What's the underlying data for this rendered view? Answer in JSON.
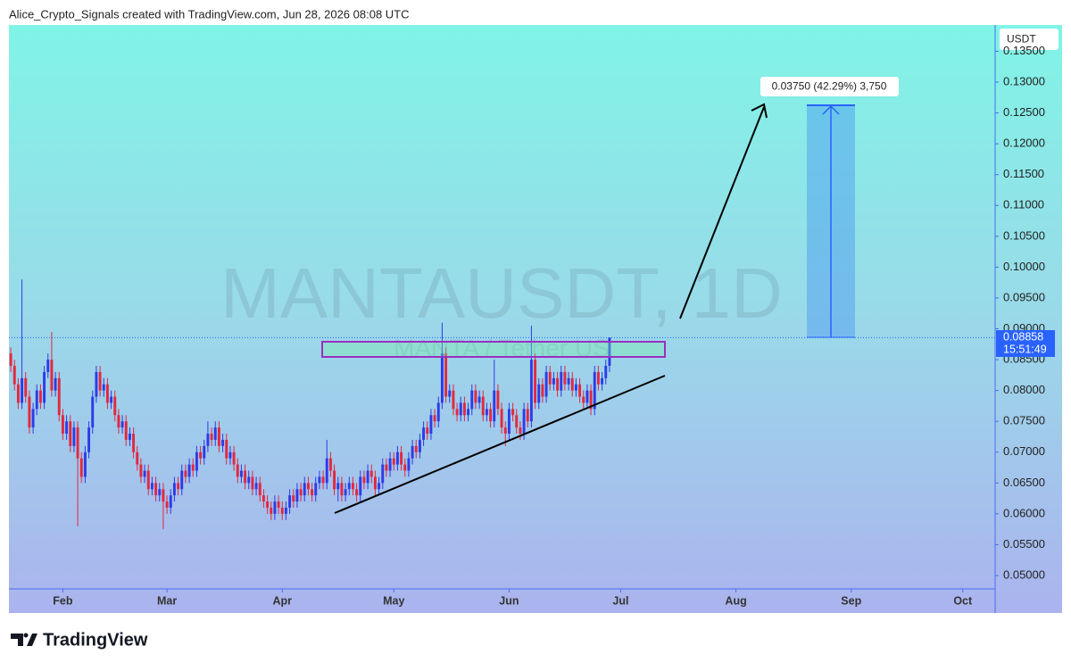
{
  "header": {
    "attribution": "Alice_Crypto_Signals created with TradingView.com, Jun 28, 2026 08:08 UTC"
  },
  "chart_data": {
    "type": "candlestick",
    "title": "MANTAUSDT, 1D",
    "subtitle": "MANTA / Tether US",
    "y_axis_label": "USDT",
    "x": [
      18,
      19,
      20,
      21,
      22,
      23,
      24,
      25,
      26,
      27,
      28,
      29,
      30,
      31,
      32,
      33,
      34,
      35,
      36,
      37,
      38,
      39,
      40,
      41,
      42,
      43,
      44,
      45,
      46,
      47,
      48,
      49,
      50,
      51,
      52,
      53,
      54,
      55,
      56,
      57,
      58,
      59,
      60,
      61,
      62,
      63,
      64,
      65,
      66,
      67,
      68,
      69,
      70,
      71,
      72,
      73,
      74,
      75,
      76,
      77,
      78,
      79,
      80,
      81,
      82,
      83,
      84,
      85,
      86,
      87,
      88,
      89,
      90,
      91,
      92,
      93,
      94,
      95,
      96,
      97,
      98,
      99,
      100,
      101,
      102,
      103,
      104,
      105,
      106,
      107,
      108,
      109,
      110,
      111,
      112,
      113,
      114,
      115,
      116,
      117,
      118,
      119,
      120,
      121,
      122,
      123,
      124,
      125,
      126,
      127,
      128,
      129,
      130,
      131,
      132,
      133,
      134,
      135,
      136,
      137,
      138,
      139,
      140,
      141,
      142,
      143,
      144,
      145,
      146,
      147,
      148,
      149,
      150,
      151,
      152,
      153,
      154,
      155,
      156,
      157,
      158,
      159,
      160,
      161,
      162,
      163,
      164,
      165,
      166,
      167,
      168,
      169,
      170,
      171,
      172,
      173,
      174,
      175,
      176,
      177,
      178,
      179
    ],
    "open": [
      0.086,
      0.084,
      0.081,
      0.078,
      0.082,
      0.079,
      0.074,
      0.077,
      0.08,
      0.078,
      0.083,
      0.085,
      0.08,
      0.082,
      0.076,
      0.073,
      0.075,
      0.071,
      0.074,
      0.069,
      0.066,
      0.07,
      0.074,
      0.079,
      0.083,
      0.08,
      0.081,
      0.078,
      0.079,
      0.076,
      0.074,
      0.075,
      0.072,
      0.073,
      0.07,
      0.068,
      0.066,
      0.067,
      0.064,
      0.065,
      0.063,
      0.064,
      0.062,
      0.061,
      0.063,
      0.065,
      0.064,
      0.067,
      0.066,
      0.068,
      0.067,
      0.07,
      0.069,
      0.071,
      0.073,
      0.072,
      0.074,
      0.071,
      0.072,
      0.069,
      0.07,
      0.068,
      0.066,
      0.067,
      0.065,
      0.066,
      0.064,
      0.065,
      0.063,
      0.062,
      0.061,
      0.06,
      0.062,
      0.061,
      0.06,
      0.061,
      0.063,
      0.062,
      0.064,
      0.063,
      0.065,
      0.064,
      0.063,
      0.065,
      0.066,
      0.065,
      0.069,
      0.067,
      0.064,
      0.065,
      0.063,
      0.064,
      0.065,
      0.064,
      0.063,
      0.066,
      0.065,
      0.067,
      0.066,
      0.064,
      0.065,
      0.068,
      0.067,
      0.069,
      0.068,
      0.07,
      0.068,
      0.067,
      0.069,
      0.071,
      0.07,
      0.072,
      0.074,
      0.073,
      0.076,
      0.075,
      0.078,
      0.086,
      0.079,
      0.08,
      0.077,
      0.076,
      0.078,
      0.076,
      0.077,
      0.08,
      0.078,
      0.079,
      0.076,
      0.077,
      0.075,
      0.08,
      0.077,
      0.074,
      0.073,
      0.077,
      0.076,
      0.074,
      0.073,
      0.077,
      0.075,
      0.085,
      0.078,
      0.081,
      0.079,
      0.083,
      0.081,
      0.082,
      0.08,
      0.083,
      0.081,
      0.082,
      0.08,
      0.081,
      0.079,
      0.078,
      0.08,
      0.077,
      0.083,
      0.081,
      0.082,
      0.084
    ],
    "high": [
      0.087,
      0.085,
      0.082,
      0.098,
      0.083,
      0.08,
      0.078,
      0.081,
      0.081,
      0.084,
      0.086,
      0.0895,
      0.083,
      0.083,
      0.077,
      0.076,
      0.076,
      0.075,
      0.075,
      0.07,
      0.071,
      0.075,
      0.08,
      0.084,
      0.084,
      0.082,
      0.082,
      0.08,
      0.08,
      0.077,
      0.076,
      0.076,
      0.074,
      0.074,
      0.071,
      0.069,
      0.068,
      0.068,
      0.066,
      0.066,
      0.065,
      0.065,
      0.063,
      0.064,
      0.066,
      0.066,
      0.068,
      0.068,
      0.069,
      0.069,
      0.071,
      0.071,
      0.072,
      0.075,
      0.074,
      0.075,
      0.075,
      0.073,
      0.073,
      0.071,
      0.071,
      0.069,
      0.068,
      0.068,
      0.067,
      0.067,
      0.066,
      0.066,
      0.064,
      0.063,
      0.062,
      0.063,
      0.063,
      0.062,
      0.062,
      0.064,
      0.064,
      0.065,
      0.065,
      0.066,
      0.066,
      0.065,
      0.066,
      0.067,
      0.067,
      0.072,
      0.07,
      0.068,
      0.066,
      0.066,
      0.065,
      0.066,
      0.066,
      0.065,
      0.067,
      0.067,
      0.068,
      0.068,
      0.067,
      0.066,
      0.069,
      0.069,
      0.07,
      0.07,
      0.071,
      0.071,
      0.069,
      0.07,
      0.072,
      0.072,
      0.073,
      0.075,
      0.075,
      0.077,
      0.077,
      0.079,
      0.091,
      0.087,
      0.081,
      0.081,
      0.078,
      0.079,
      0.079,
      0.078,
      0.081,
      0.081,
      0.08,
      0.08,
      0.078,
      0.078,
      0.085,
      0.081,
      0.078,
      0.075,
      0.078,
      0.078,
      0.077,
      0.075,
      0.078,
      0.078,
      0.0905,
      0.086,
      0.082,
      0.082,
      0.084,
      0.084,
      0.083,
      0.083,
      0.084,
      0.084,
      0.083,
      0.083,
      0.082,
      0.082,
      0.08,
      0.081,
      0.081,
      0.084,
      0.084,
      0.083,
      0.085,
      0.0886
    ],
    "low": [
      0.083,
      0.08,
      0.077,
      0.077,
      0.078,
      0.073,
      0.073,
      0.076,
      0.077,
      0.077,
      0.082,
      0.079,
      0.079,
      0.075,
      0.072,
      0.072,
      0.07,
      0.07,
      0.058,
      0.065,
      0.065,
      0.069,
      0.073,
      0.078,
      0.079,
      0.079,
      0.077,
      0.077,
      0.075,
      0.073,
      0.073,
      0.071,
      0.071,
      0.069,
      0.067,
      0.065,
      0.065,
      0.063,
      0.063,
      0.062,
      0.062,
      0.0575,
      0.06,
      0.06,
      0.062,
      0.063,
      0.063,
      0.065,
      0.065,
      0.066,
      0.066,
      0.068,
      0.068,
      0.07,
      0.071,
      0.071,
      0.07,
      0.07,
      0.068,
      0.068,
      0.067,
      0.065,
      0.065,
      0.064,
      0.064,
      0.063,
      0.063,
      0.062,
      0.061,
      0.06,
      0.059,
      0.059,
      0.06,
      0.059,
      0.059,
      0.06,
      0.061,
      0.061,
      0.062,
      0.062,
      0.063,
      0.062,
      0.062,
      0.064,
      0.064,
      0.064,
      0.066,
      0.063,
      0.062,
      0.062,
      0.062,
      0.063,
      0.063,
      0.062,
      0.062,
      0.064,
      0.064,
      0.065,
      0.063,
      0.063,
      0.064,
      0.066,
      0.066,
      0.067,
      0.067,
      0.067,
      0.066,
      0.066,
      0.068,
      0.069,
      0.069,
      0.071,
      0.072,
      0.072,
      0.074,
      0.074,
      0.077,
      0.078,
      0.078,
      0.076,
      0.075,
      0.075,
      0.075,
      0.075,
      0.076,
      0.077,
      0.077,
      0.075,
      0.075,
      0.074,
      0.074,
      0.076,
      0.073,
      0.071,
      0.072,
      0.075,
      0.073,
      0.072,
      0.072,
      0.074,
      0.074,
      0.077,
      0.077,
      0.078,
      0.078,
      0.08,
      0.08,
      0.079,
      0.079,
      0.08,
      0.08,
      0.079,
      0.079,
      0.078,
      0.077,
      0.077,
      0.076,
      0.076,
      0.08,
      0.08,
      0.081,
      0.083
    ],
    "close": [
      0.084,
      0.081,
      0.078,
      0.082,
      0.079,
      0.074,
      0.077,
      0.08,
      0.078,
      0.083,
      0.085,
      0.08,
      0.082,
      0.076,
      0.073,
      0.075,
      0.071,
      0.074,
      0.069,
      0.066,
      0.07,
      0.074,
      0.079,
      0.083,
      0.08,
      0.081,
      0.078,
      0.079,
      0.076,
      0.074,
      0.075,
      0.072,
      0.073,
      0.07,
      0.068,
      0.066,
      0.067,
      0.064,
      0.065,
      0.063,
      0.064,
      0.062,
      0.061,
      0.063,
      0.065,
      0.064,
      0.067,
      0.066,
      0.068,
      0.067,
      0.07,
      0.069,
      0.071,
      0.073,
      0.072,
      0.074,
      0.071,
      0.072,
      0.069,
      0.07,
      0.068,
      0.066,
      0.067,
      0.065,
      0.066,
      0.064,
      0.065,
      0.063,
      0.062,
      0.061,
      0.06,
      0.062,
      0.061,
      0.06,
      0.061,
      0.063,
      0.062,
      0.064,
      0.063,
      0.065,
      0.064,
      0.063,
      0.065,
      0.066,
      0.065,
      0.069,
      0.067,
      0.064,
      0.065,
      0.063,
      0.064,
      0.065,
      0.064,
      0.063,
      0.066,
      0.065,
      0.067,
      0.066,
      0.064,
      0.065,
      0.068,
      0.067,
      0.069,
      0.068,
      0.07,
      0.068,
      0.067,
      0.069,
      0.071,
      0.07,
      0.072,
      0.074,
      0.073,
      0.076,
      0.075,
      0.078,
      0.086,
      0.079,
      0.08,
      0.077,
      0.076,
      0.078,
      0.076,
      0.077,
      0.08,
      0.078,
      0.079,
      0.076,
      0.077,
      0.075,
      0.08,
      0.077,
      0.074,
      0.073,
      0.077,
      0.076,
      0.074,
      0.073,
      0.077,
      0.075,
      0.085,
      0.078,
      0.081,
      0.079,
      0.083,
      0.081,
      0.082,
      0.08,
      0.083,
      0.081,
      0.082,
      0.08,
      0.081,
      0.079,
      0.078,
      0.08,
      0.077,
      0.083,
      0.081,
      0.082,
      0.084,
      0.08858
    ],
    "up_color": "#2d3be8",
    "down_color": "#e3283f",
    "xlim": [
      17.5,
      282.7
    ],
    "ylim": [
      0.04783,
      0.13926
    ],
    "xticks": [
      {
        "value": 32,
        "label": "Feb"
      },
      {
        "value": 60,
        "label": "Mar"
      },
      {
        "value": 91,
        "label": "Apr"
      },
      {
        "value": 121,
        "label": "May"
      },
      {
        "value": 152,
        "label": "Jun"
      },
      {
        "value": 182,
        "label": "Jul"
      },
      {
        "value": 213,
        "label": "Aug"
      },
      {
        "value": 244,
        "label": "Sep"
      },
      {
        "value": 274,
        "label": "Oct"
      }
    ],
    "yticks": [
      {
        "value": 0.05,
        "label": "0.05000"
      },
      {
        "value": 0.055,
        "label": "0.05500"
      },
      {
        "value": 0.06,
        "label": "0.06000"
      },
      {
        "value": 0.065,
        "label": "0.06500"
      },
      {
        "value": 0.07,
        "label": "0.07000"
      },
      {
        "value": 0.075,
        "label": "0.07500"
      },
      {
        "value": 0.08,
        "label": "0.08000"
      },
      {
        "value": 0.085,
        "label": "0.08500"
      },
      {
        "value": 0.09,
        "label": "0.09000"
      },
      {
        "value": 0.095,
        "label": "0.09500"
      },
      {
        "value": 0.1,
        "label": "0.10000"
      },
      {
        "value": 0.105,
        "label": "0.10500"
      },
      {
        "value": 0.11,
        "label": "0.11000"
      },
      {
        "value": 0.115,
        "label": "0.11500"
      },
      {
        "value": 0.12,
        "label": "0.12000"
      },
      {
        "value": 0.125,
        "label": "0.12500"
      },
      {
        "value": 0.13,
        "label": "0.13000"
      },
      {
        "value": 0.135,
        "label": "0.13500"
      }
    ],
    "last_price": 0.08858,
    "countdown": "15:51:49",
    "annotation": "0.03750 (42.29%) 3,750"
  },
  "footer": {
    "logo": "TradingView"
  }
}
